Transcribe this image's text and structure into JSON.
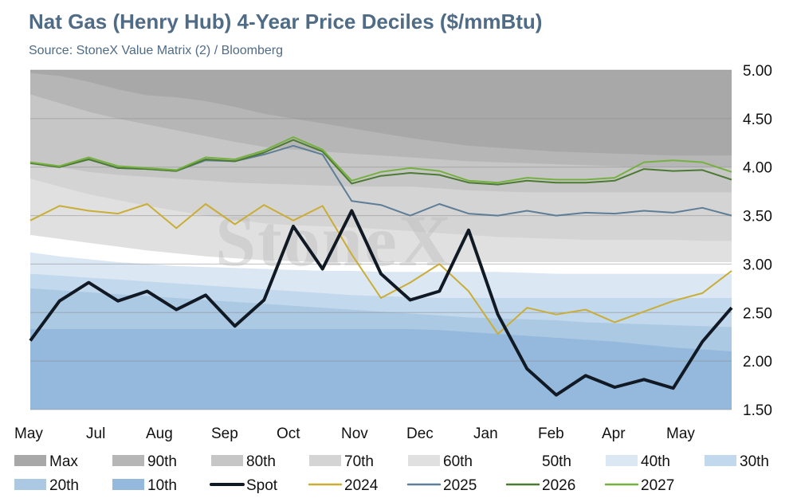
{
  "title": "Nat Gas (Henry Hub) 4-Year Price Deciles ($/mmBtu)",
  "subtitle": "Source: StoneX Value Matrix (2) / Bloomberg",
  "watermark": "StoneX",
  "chart_data": {
    "type": "area",
    "title": "Nat Gas (Henry Hub) 4-Year Price Deciles ($/mmBtu)",
    "x_ticks": [
      "May",
      "Jul",
      "Aug",
      "Sep",
      "Oct",
      "Nov",
      "Dec",
      "Jan",
      "Feb",
      "Apr",
      "May"
    ],
    "y_ticks": [
      "5.00",
      "4.50",
      "4.00",
      "3.50",
      "3.00",
      "2.50",
      "2.00",
      "1.50"
    ],
    "ylim": [
      1.5,
      5.0
    ],
    "y_axis_position": "right",
    "grid": true,
    "legend_position": "bottom",
    "n_points": 25,
    "deciles": [
      {
        "name": "Max",
        "color": "#a8a8a8",
        "values": [
          5.0,
          5.0,
          5.0,
          5.0,
          5.0,
          5.0,
          5.0,
          5.0,
          5.0,
          5.0,
          5.0,
          5.0,
          5.0,
          5.0,
          5.0,
          5.0,
          5.0,
          5.0,
          5.0,
          5.0,
          5.0,
          5.0,
          5.0,
          5.0,
          5.0
        ]
      },
      {
        "name": "90th",
        "color": "#b6b6b6",
        "values": [
          4.97,
          4.94,
          4.88,
          4.8,
          4.74,
          4.72,
          4.68,
          4.62,
          4.55,
          4.5,
          4.45,
          4.4,
          4.35,
          4.3,
          4.26,
          4.22,
          4.2,
          4.18,
          4.16,
          4.15,
          4.14,
          4.13,
          4.12,
          4.12,
          4.12
        ]
      },
      {
        "name": "80th",
        "color": "#c6c6c6",
        "values": [
          4.75,
          4.66,
          4.57,
          4.5,
          4.44,
          4.38,
          4.32,
          4.26,
          4.21,
          4.18,
          4.16,
          4.14,
          4.12,
          4.1,
          4.08,
          4.06,
          4.05,
          4.04,
          4.03,
          4.02,
          4.01,
          4.0,
          4.0,
          4.0,
          4.0
        ]
      },
      {
        "name": "70th",
        "color": "#d4d4d4",
        "values": [
          4.05,
          4.0,
          3.95,
          3.92,
          3.9,
          3.88,
          3.86,
          3.84,
          3.83,
          3.82,
          3.81,
          3.8,
          3.8,
          3.8,
          3.78,
          3.76,
          3.75,
          3.74,
          3.74,
          3.74,
          3.74,
          3.74,
          3.74,
          3.74,
          3.74
        ]
      },
      {
        "name": "60th",
        "color": "#e0e0e0",
        "values": [
          3.88,
          3.8,
          3.72,
          3.66,
          3.6,
          3.55,
          3.5,
          3.46,
          3.42,
          3.4,
          3.39,
          3.38,
          3.36,
          3.34,
          3.32,
          3.3,
          3.28,
          3.27,
          3.26,
          3.25,
          3.25,
          3.25,
          3.25,
          3.24,
          3.24
        ]
      },
      {
        "name": "50th",
        "color": "#ffffff",
        "values": [
          3.3,
          3.26,
          3.22,
          3.18,
          3.14,
          3.11,
          3.08,
          3.06,
          3.04,
          3.03,
          3.02,
          3.02,
          3.02,
          3.02,
          3.02,
          3.02,
          3.02,
          3.02,
          3.02,
          3.02,
          3.02,
          3.02,
          3.02,
          3.02,
          3.02
        ]
      },
      {
        "name": "40th",
        "color": "#dbe7f3",
        "values": [
          3.12,
          3.08,
          3.05,
          3.02,
          3.0,
          2.98,
          2.97,
          2.96,
          2.95,
          2.94,
          2.93,
          2.93,
          2.92,
          2.92,
          2.92,
          2.92,
          2.92,
          2.91,
          2.9,
          2.9,
          2.9,
          2.9,
          2.9,
          2.9,
          2.9
        ]
      },
      {
        "name": "30th",
        "color": "#c2d8ec",
        "values": [
          2.9,
          2.88,
          2.86,
          2.84,
          2.82,
          2.8,
          2.78,
          2.76,
          2.74,
          2.72,
          2.7,
          2.68,
          2.67,
          2.66,
          2.65,
          2.65,
          2.65,
          2.65,
          2.65,
          2.65,
          2.65,
          2.65,
          2.65,
          2.65,
          2.65
        ]
      },
      {
        "name": "20th",
        "color": "#acc9e4",
        "values": [
          2.75,
          2.73,
          2.71,
          2.69,
          2.67,
          2.65,
          2.63,
          2.61,
          2.59,
          2.57,
          2.55,
          2.53,
          2.51,
          2.49,
          2.47,
          2.45,
          2.44,
          2.43,
          2.42,
          2.4,
          2.39,
          2.38,
          2.37,
          2.36,
          2.35
        ]
      },
      {
        "name": "10th",
        "color": "#94b9dc",
        "values": [
          2.33,
          2.33,
          2.33,
          2.33,
          2.33,
          2.33,
          2.33,
          2.33,
          2.33,
          2.33,
          2.33,
          2.33,
          2.33,
          2.33,
          2.32,
          2.3,
          2.28,
          2.26,
          2.24,
          2.22,
          2.2,
          2.17,
          2.14,
          2.12,
          2.1
        ]
      }
    ],
    "series": [
      {
        "name": "Spot",
        "color": "#111a24",
        "width": 4,
        "values": [
          2.21,
          2.62,
          2.81,
          2.62,
          2.72,
          2.53,
          2.68,
          2.36,
          2.63,
          3.39,
          2.95,
          3.55,
          2.9,
          2.63,
          2.72,
          3.35,
          2.48,
          1.92,
          1.65,
          1.85,
          1.73,
          1.81,
          1.72,
          2.2,
          2.55
        ]
      },
      {
        "name": "2024",
        "color": "#c9ad36",
        "width": 2,
        "values": [
          3.45,
          3.6,
          3.55,
          3.52,
          3.62,
          3.37,
          3.62,
          3.41,
          3.61,
          3.45,
          3.6,
          3.1,
          2.65,
          2.81,
          3.0,
          2.72,
          2.28,
          2.55,
          2.48,
          2.53,
          2.4,
          2.51,
          2.62,
          2.7,
          2.93
        ]
      },
      {
        "name": "2025",
        "color": "#5e7d96",
        "width": 2,
        "values": [
          4.04,
          4.0,
          4.08,
          3.99,
          3.98,
          3.96,
          4.07,
          4.06,
          4.13,
          4.22,
          4.13,
          3.65,
          3.61,
          3.5,
          3.62,
          3.52,
          3.5,
          3.55,
          3.5,
          3.53,
          3.52,
          3.55,
          3.53,
          3.58,
          3.5
        ]
      },
      {
        "name": "2026",
        "color": "#4d7a32",
        "width": 2,
        "values": [
          4.04,
          4.0,
          4.08,
          3.99,
          3.98,
          3.96,
          4.08,
          4.06,
          4.15,
          4.28,
          4.16,
          3.83,
          3.91,
          3.94,
          3.92,
          3.84,
          3.82,
          3.86,
          3.84,
          3.84,
          3.86,
          3.98,
          3.96,
          3.97,
          3.87
        ]
      },
      {
        "name": "2027",
        "color": "#76b040",
        "width": 2,
        "values": [
          4.05,
          4.01,
          4.1,
          4.01,
          3.99,
          3.97,
          4.1,
          4.08,
          4.17,
          4.31,
          4.18,
          3.86,
          3.95,
          3.99,
          3.96,
          3.86,
          3.84,
          3.89,
          3.87,
          3.87,
          3.89,
          4.05,
          4.07,
          4.05,
          3.95
        ]
      }
    ]
  }
}
